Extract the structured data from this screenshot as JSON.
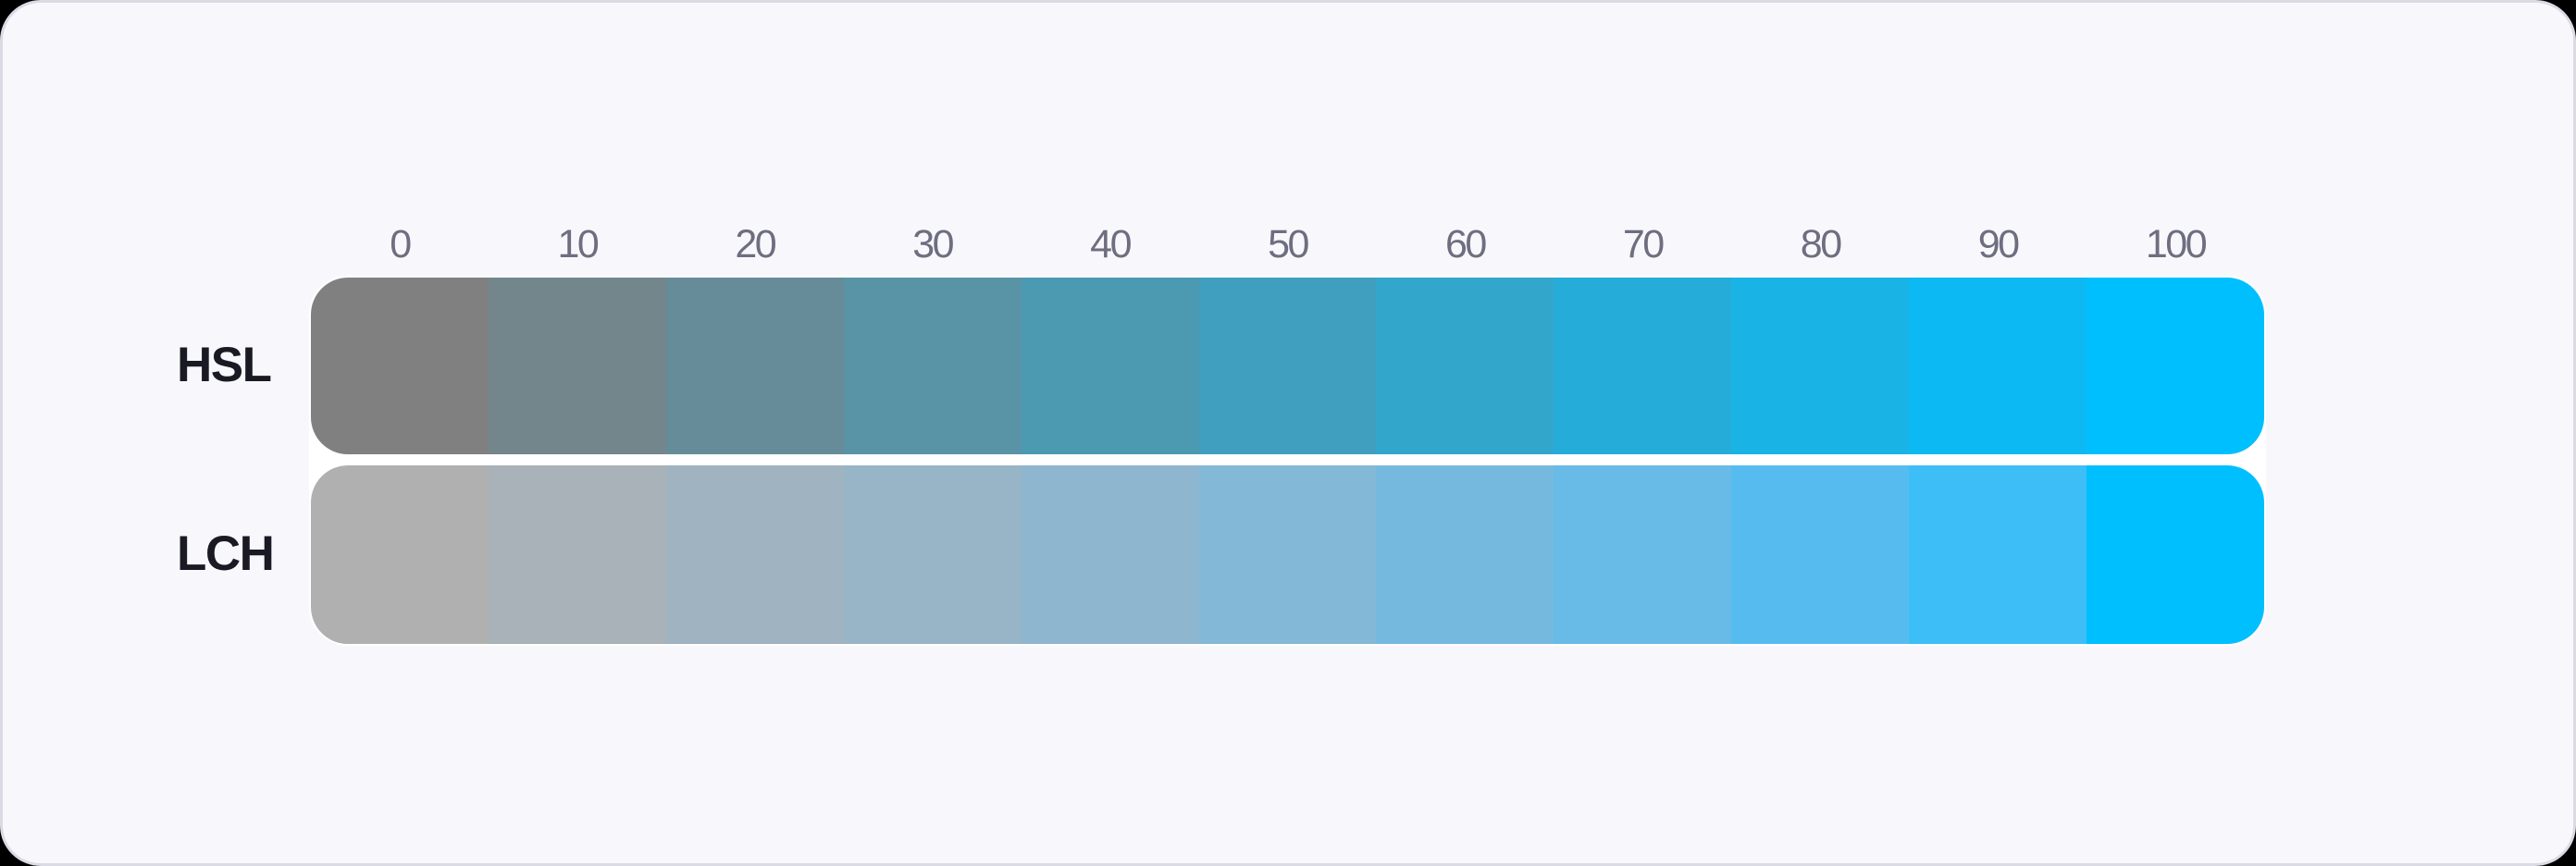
{
  "figure": {
    "description": "Comparison of HSL saturation scale and LCH chroma scale from gray to cyan",
    "background_color": "#000000",
    "card_background": "#F8F8FC",
    "card_border_color": "#DBDBE5",
    "bars_outline_color": "#FFFFFF",
    "column_label_color": "#6E6E80",
    "row_label_color": "#1A1A24"
  },
  "columns": [
    "0",
    "10",
    "20",
    "30",
    "40",
    "50",
    "60",
    "70",
    "80",
    "90",
    "100"
  ],
  "rows": [
    {
      "label": "HSL",
      "swatches": [
        "#808080",
        "#73868C",
        "#668C99",
        "#5993A6",
        "#4C99B2",
        "#409FBF",
        "#33A6CC",
        "#26ACD9",
        "#19B3E6",
        "#0DB9F2",
        "#00BFFF"
      ]
    },
    {
      "label": "LCH",
      "swatches": [
        "#B0B0B0",
        "#A8B2B8",
        "#A0B3C0",
        "#97B5C7",
        "#8EB6CF",
        "#83B8D7",
        "#76B9DF",
        "#68BBE7",
        "#56BCEF",
        "#3DBEF7",
        "#00BFFF"
      ]
    }
  ]
}
